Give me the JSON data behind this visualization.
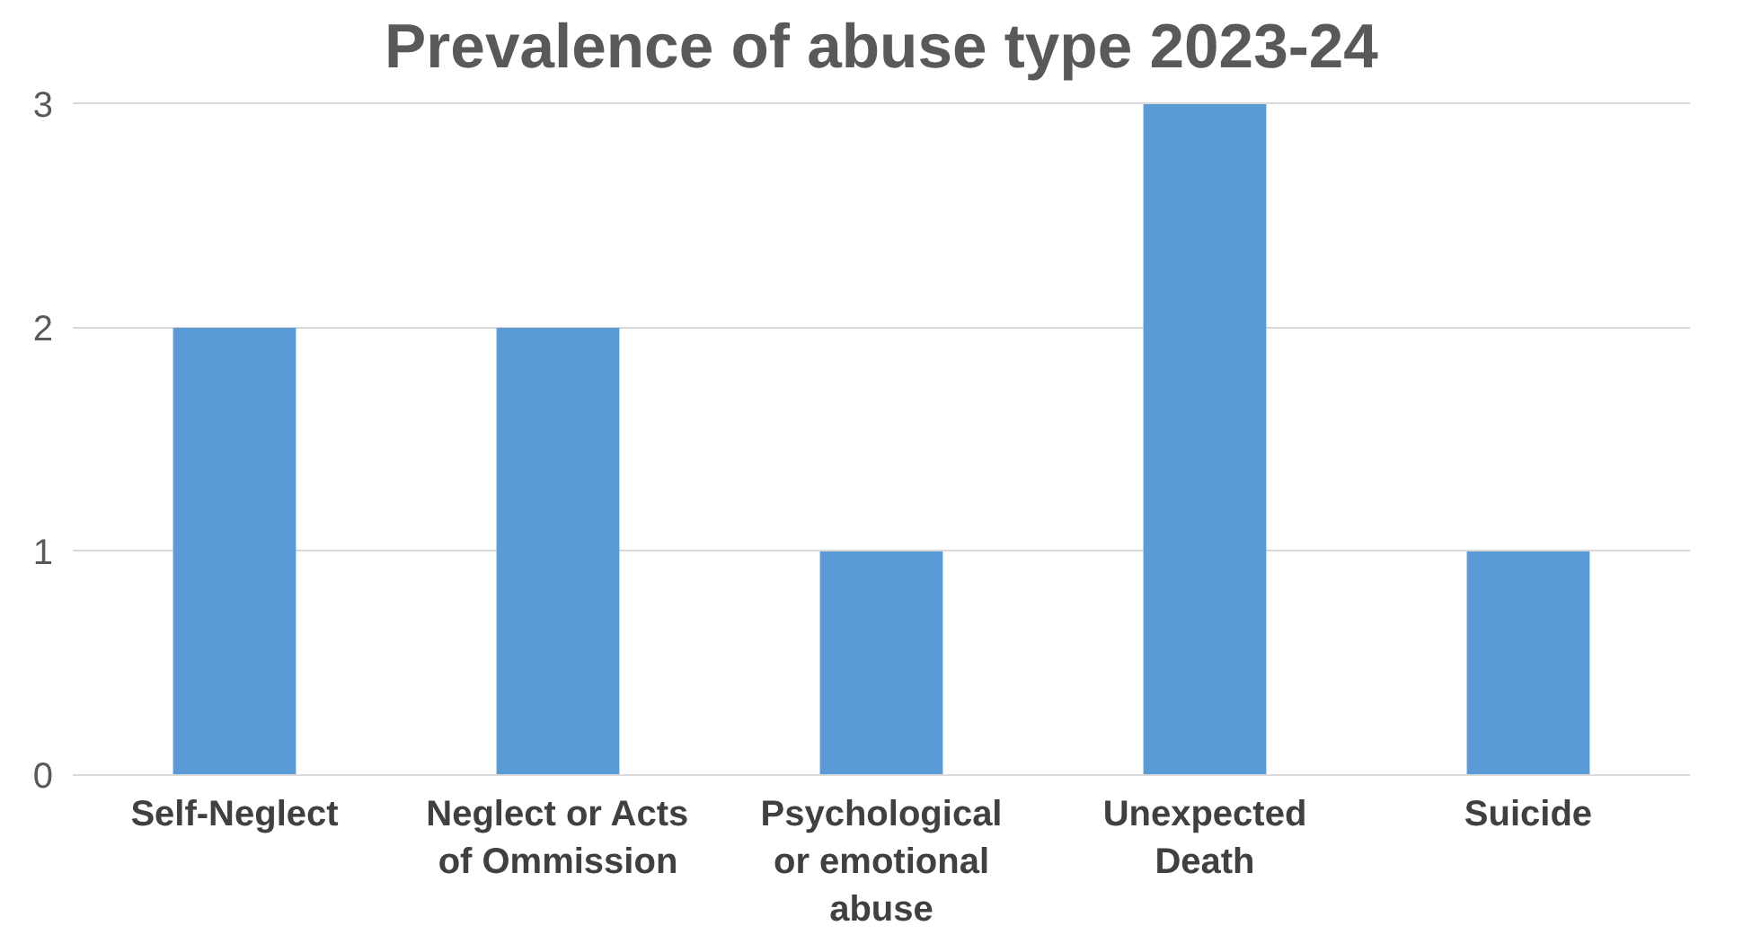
{
  "chart_data": {
    "type": "bar",
    "title": "Prevalence of abuse type 2023-24",
    "categories": [
      "Self-Neglect",
      "Neglect or Acts of Ommission",
      "Psychological or emotional abuse",
      "Unexpected Death",
      "Suicide"
    ],
    "values": [
      2,
      2,
      1,
      3,
      1
    ],
    "color": "#5b9bd5",
    "ylim": [
      0,
      3
    ],
    "yticks": [
      0,
      1,
      2,
      3
    ],
    "grid": "y"
  }
}
